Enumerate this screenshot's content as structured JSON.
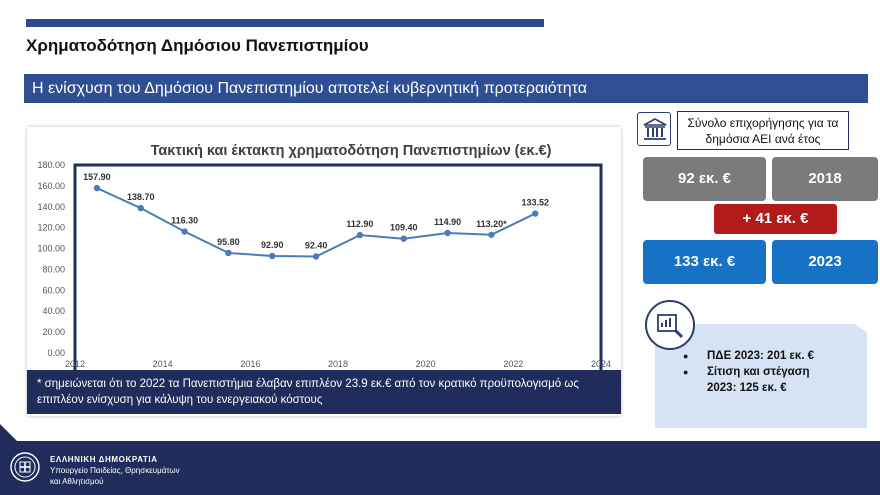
{
  "page": {
    "title": "Χρηματοδότηση Δημόσιου Πανεπιστημίου",
    "banner": "Η ενίσχυση του Δημόσιου Πανεπιστημίου αποτελεί κυβερνητική προτεραιότητα"
  },
  "chart_data": {
    "type": "line",
    "title": "Τακτική και έκτακτη χρηματοδότηση Πανεπιστημίων (εκ.€)",
    "x": [
      2012.5,
      2013.5,
      2014.5,
      2015.5,
      2016.5,
      2017.5,
      2018.5,
      2019.5,
      2020.5,
      2021.5,
      2022.5
    ],
    "values": [
      157.9,
      138.7,
      116.3,
      95.8,
      92.9,
      92.4,
      112.9,
      109.4,
      114.9,
      113.2,
      133.52
    ],
    "data_labels": [
      "157.90",
      "138.70",
      "116.30",
      "95.80",
      "92.90",
      "92.40",
      "112.90",
      "109.40",
      "114.90",
      "113.20*",
      "133.52"
    ],
    "x_ticks": [
      "2012",
      "2014",
      "2016",
      "2018",
      "2020",
      "2022",
      "2024"
    ],
    "y_ticks": [
      "0.00",
      "20.00",
      "40.00",
      "60.00",
      "80.00",
      "100.00",
      "120.00",
      "140.00",
      "160.00",
      "180.00"
    ],
    "xlim": [
      2012,
      2024
    ],
    "ylim": [
      0,
      180
    ],
    "grid": false,
    "line_color": "#4a7db5"
  },
  "footnote": "* σημειώνεται ότι το 2022 τα Πανεπιστήμια έλαβαν επιπλέον 23.9 εκ.€ από τον κρατικό προϋπολογισμό ως επιπλέον ενίσχυση για κάλυψη του ενεργειακού κόστους",
  "summary": {
    "label": "Σύνολο επιχορήγησης για τα δημόσια ΑΕΙ ανά έτος",
    "icon": "university-building-icon",
    "amount_2018": "92 εκ. €",
    "year_2018": "2018",
    "difference": "+   41 εκ. €",
    "amount_2023": "133 εκ. €",
    "year_2023": "2023"
  },
  "info": {
    "icon": "magnifier-chart-icon",
    "bullet1": "ΠΔΕ 2023: 201 εκ. €",
    "bullet2_line1": "Σίτιση και στέγαση",
    "bullet2_line2": "2023: 125 εκ. €"
  },
  "footer": {
    "line1": "ΕΛΛΗΝΙΚΗ ΔΗΜΟΚΡΑΤΙΑ",
    "line2": "Υπουργείο Παιδείας, Θρησκευμάτων",
    "line3": "και Αθλητισμού"
  },
  "colors": {
    "navy": "#1f2c5c",
    "banner_blue": "#2e4f92",
    "tile_grey": "#7b7b7b",
    "tile_blue": "#1572c4",
    "accent_red": "#b31b1b",
    "panel_light": "#d6e3f4"
  }
}
